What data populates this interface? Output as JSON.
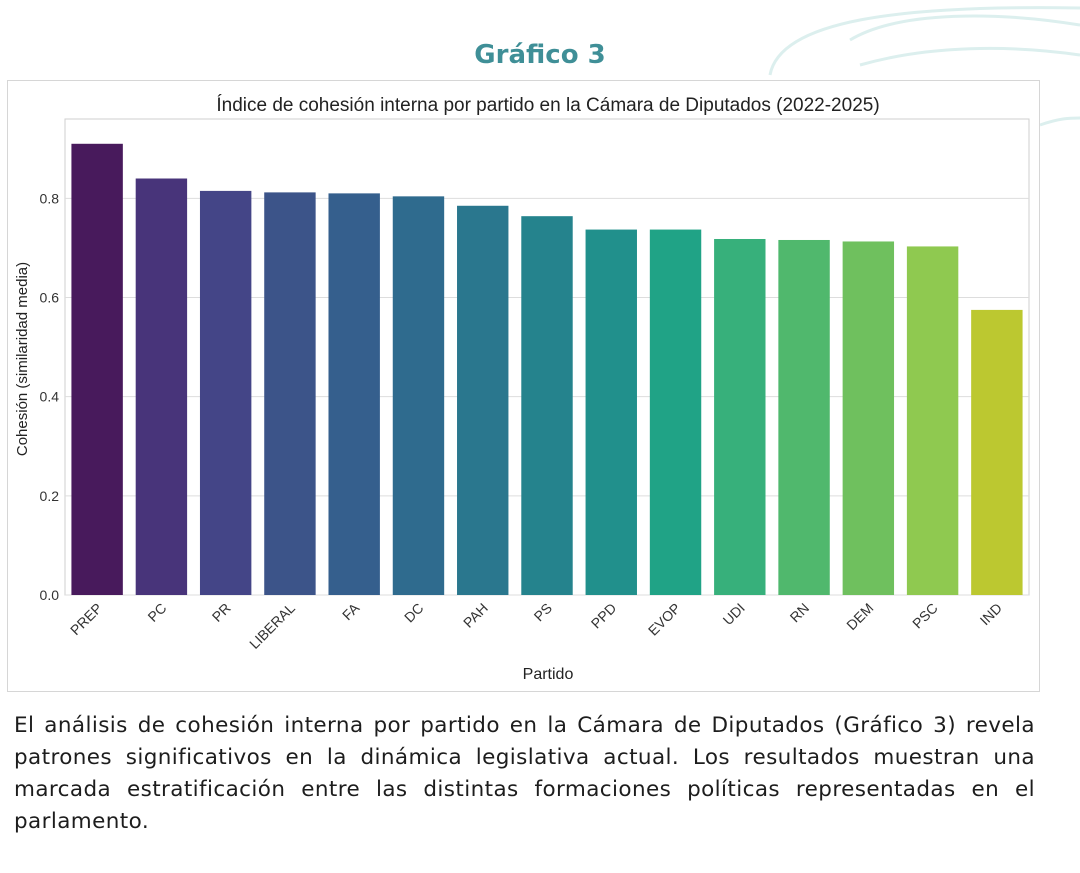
{
  "page": {
    "heading": "Gráfico 3",
    "heading_color": "#3f8f97",
    "paragraph": "El análisis de cohesión interna por partido en la Cámara de Diputados (Gráfico 3) revela patrones significativos en la dinámica legislativa actual. Los resultados muestran una marcada estratificación entre las distintas formaciones políticas representadas en el parlamento."
  },
  "chart_data": {
    "type": "bar",
    "title": "Índice de cohesión interna por partido en la Cámara de Diputados (2022-2025)",
    "xlabel": "Partido",
    "ylabel": "Cohesión (similaridad media)",
    "categories": [
      "PREP",
      "PC",
      "PR",
      "LIBERAL",
      "FA",
      "DC",
      "PAH",
      "PS",
      "PPD",
      "EVOP",
      "UDI",
      "RN",
      "DEM",
      "PSC",
      "IND"
    ],
    "values": [
      0.91,
      0.84,
      0.815,
      0.812,
      0.81,
      0.804,
      0.785,
      0.764,
      0.737,
      0.737,
      0.718,
      0.716,
      0.713,
      0.703,
      0.575
    ],
    "colors": [
      "#481a5c",
      "#48347a",
      "#444587",
      "#3c5489",
      "#355f8d",
      "#2f6b8e",
      "#2a778e",
      "#25838d",
      "#21908c",
      "#20a386",
      "#37b07b",
      "#50b86d",
      "#6fc05e",
      "#8fc950",
      "#bcc830"
    ],
    "yticks": [
      "0.0",
      "0.2",
      "0.4",
      "0.6",
      "0.8"
    ],
    "ylim": [
      0,
      0.96
    ],
    "grid": true,
    "legend": "none"
  }
}
